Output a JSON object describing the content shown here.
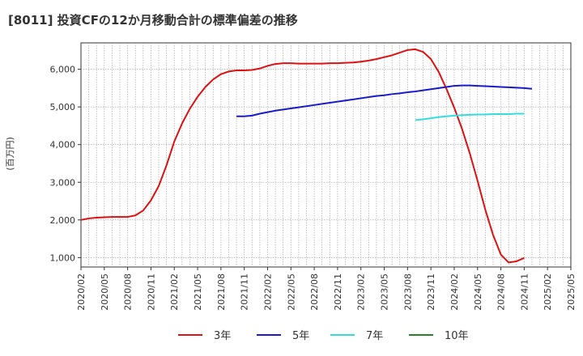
{
  "chart_data": {
    "type": "line",
    "title": "[8011]  投資CFの12か月移動合計の標準偏差の推移",
    "xlabel": "",
    "ylabel": "(百万円)",
    "ylim": [
      750,
      6700
    ],
    "yticks": [
      1000,
      2000,
      3000,
      4000,
      5000,
      6000
    ],
    "ytick_labels": [
      "1,000",
      "2,000",
      "3,000",
      "4,000",
      "5,000",
      "6,000"
    ],
    "xtick_labels": [
      "2020/02",
      "2020/05",
      "2020/08",
      "2020/11",
      "2021/02",
      "2021/05",
      "2021/08",
      "2021/11",
      "2022/02",
      "2022/05",
      "2022/08",
      "2022/11",
      "2023/02",
      "2023/05",
      "2023/08",
      "2023/11",
      "2024/02",
      "2024/05",
      "2024/08",
      "2024/11",
      "2025/02",
      "2025/05"
    ],
    "x_start": "2020/02",
    "grid": true,
    "legend_position": "bottom",
    "series": [
      {
        "name": "3年",
        "color": "#dd1111",
        "start_index": 0,
        "values": [
          2000,
          2040,
          2060,
          2070,
          2080,
          2080,
          2080,
          2120,
          2250,
          2520,
          2900,
          3450,
          4080,
          4560,
          4950,
          5270,
          5530,
          5730,
          5870,
          5940,
          5970,
          5970,
          5980,
          6020,
          6090,
          6140,
          6160,
          6160,
          6150,
          6150,
          6150,
          6150,
          6160,
          6160,
          6170,
          6180,
          6200,
          6230,
          6270,
          6320,
          6370,
          6440,
          6510,
          6530,
          6460,
          6270,
          5930,
          5480,
          4980,
          4420,
          3770,
          3040,
          2270,
          1600,
          1080,
          870,
          900,
          990
        ]
      },
      {
        "name": "5年",
        "color": "#1a1acc",
        "start_index": 20,
        "values": [
          4750,
          4750,
          4770,
          4820,
          4860,
          4900,
          4930,
          4960,
          4990,
          5020,
          5050,
          5080,
          5110,
          5140,
          5170,
          5200,
          5230,
          5260,
          5290,
          5310,
          5340,
          5360,
          5390,
          5410,
          5440,
          5470,
          5500,
          5530,
          5560,
          5570,
          5570,
          5560,
          5550,
          5540,
          5530,
          5520,
          5510,
          5500,
          5480
        ]
      },
      {
        "name": "7年",
        "color": "#33dddd",
        "start_index": 43,
        "values": [
          4650,
          4670,
          4700,
          4730,
          4750,
          4770,
          4780,
          4790,
          4800,
          4800,
          4810,
          4810,
          4810,
          4820,
          4820
        ]
      },
      {
        "name": "10年",
        "color": "#228822",
        "start_index": null,
        "values": []
      }
    ]
  }
}
